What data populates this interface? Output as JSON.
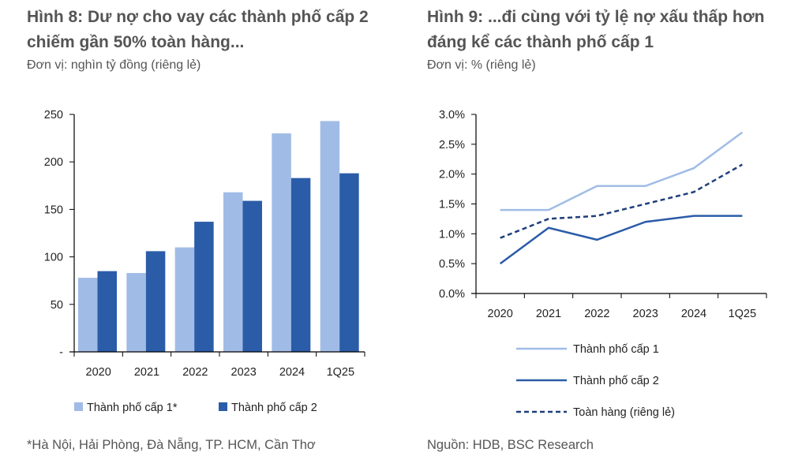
{
  "chart_data": [
    {
      "type": "bar",
      "title": "Hình 8: Dư nợ cho vay các thành phố cấp 2 chiếm gần 50% toàn hàng...",
      "unit": "Đơn vị: nghìn tỷ đồng (riêng lẻ)",
      "categories": [
        "2020",
        "2021",
        "2022",
        "2023",
        "2024",
        "1Q25"
      ],
      "yticks": [
        "-",
        "50",
        "100",
        "150",
        "200",
        "250"
      ],
      "ylim": [
        0,
        250
      ],
      "legend": "bottom",
      "series": [
        {
          "name": "Thành phố cấp 1*",
          "color": "#A0BCE6",
          "values": [
            78,
            83,
            110,
            168,
            230,
            243
          ]
        },
        {
          "name": "Thành phố cấp 2",
          "color": "#2B5CA8",
          "values": [
            85,
            106,
            137,
            159,
            183,
            188
          ]
        }
      ],
      "note": "*Hà Nội, Hải Phòng, Đà Nẵng, TP. HCM, Cần Thơ"
    },
    {
      "type": "line",
      "title": "Hình 9: ...đi cùng với tỷ lệ nợ xấu thấp hơn đáng kể các thành phố cấp 1",
      "unit": "Đơn vị: % (riêng lẻ)",
      "categories": [
        "2020",
        "2021",
        "2022",
        "2023",
        "2024",
        "1Q25"
      ],
      "yticks": [
        "0.0%",
        "0.5%",
        "1.0%",
        "1.5%",
        "2.0%",
        "2.5%",
        "3.0%"
      ],
      "ylim": [
        0,
        3
      ],
      "legend": "bottom",
      "series": [
        {
          "name": "Thành phố cấp 1",
          "color": "#A0BCE6",
          "dash": false,
          "values": [
            1.4,
            1.4,
            1.8,
            1.8,
            2.1,
            2.7
          ]
        },
        {
          "name": "Thành phố cấp 2",
          "color": "#2B5CA8",
          "dash": false,
          "values": [
            0.5,
            1.1,
            0.9,
            1.2,
            1.3,
            1.3
          ]
        },
        {
          "name": "Toàn hàng (riêng lẻ)",
          "color": "#1F3F7A",
          "dash": true,
          "values": [
            0.93,
            1.25,
            1.3,
            1.5,
            1.7,
            2.16
          ]
        }
      ],
      "note": "Nguồn: HDB, BSC Research"
    }
  ]
}
